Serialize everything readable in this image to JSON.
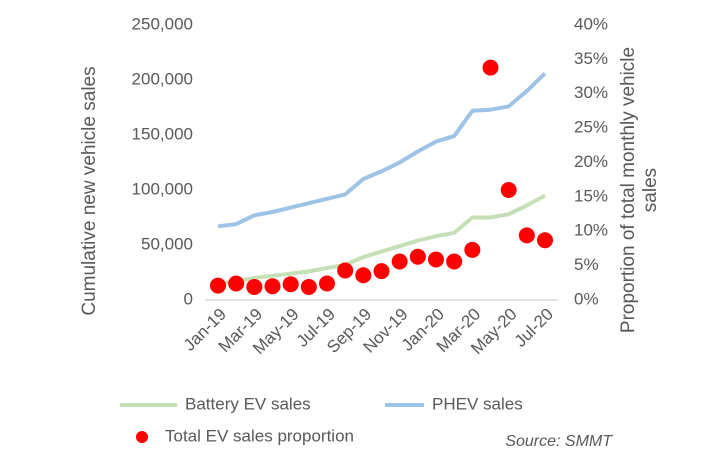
{
  "chart_data": {
    "type": "line",
    "y_label": "Cumulative new vehicle sales",
    "y2_label": "Proportion of total monthly vehicle sales",
    "source": "Source: SMMT",
    "categories": [
      "Jan-19",
      null,
      "Mar-19",
      null,
      "May-19",
      null,
      "Jul-19",
      null,
      "Sep-19",
      null,
      "Nov-19",
      null,
      "Jan-20",
      null,
      "Mar-20",
      null,
      "May-20",
      null,
      "Jul-20"
    ],
    "series": [
      {
        "name": "Battery EV sales",
        "type": "line",
        "axis": "y",
        "color": "#c5e0b4",
        "values": [
          15000,
          17000,
          20000,
          22000,
          24000,
          26000,
          29000,
          32000,
          39000,
          44000,
          49000,
          54000,
          58000,
          61000,
          75000,
          75000,
          78000,
          86000,
          95000
        ]
      },
      {
        "name": "PHEV sales",
        "type": "line",
        "axis": "y",
        "color": "#9dc3e6",
        "values": [
          67000,
          69000,
          77000,
          80000,
          84000,
          88000,
          92000,
          96000,
          110000,
          117000,
          125000,
          135000,
          144000,
          149000,
          172000,
          173000,
          176000,
          190000,
          206000
        ]
      },
      {
        "name": "Total EV sales proportion",
        "type": "scatter",
        "axis": "y2",
        "color": "#ff0000",
        "values": [
          2.1,
          2.4,
          1.9,
          2.0,
          2.3,
          1.9,
          2.4,
          4.3,
          3.6,
          4.2,
          5.6,
          6.3,
          5.9,
          5.6,
          7.3,
          33.8,
          16.0,
          9.4,
          8.7
        ]
      }
    ],
    "ylim": [
      0,
      250000
    ],
    "yticks": [
      0,
      {
        "value": 50000,
        "label": "50,000"
      },
      {
        "value": 100000,
        "label": "100,000"
      },
      {
        "value": 150000,
        "label": "150,000"
      },
      {
        "value": 200000,
        "label": "200,000"
      },
      {
        "value": 250000,
        "label": "250,000"
      }
    ],
    "y2lim": [
      0,
      40
    ],
    "y2ticks": [
      {
        "value": 0,
        "label": "0%"
      },
      {
        "value": 5,
        "label": "5%"
      },
      {
        "value": 10,
        "label": "10%"
      },
      {
        "value": 15,
        "label": "15%"
      },
      {
        "value": 20,
        "label": "20%"
      },
      {
        "value": 25,
        "label": "25%"
      },
      {
        "value": 30,
        "label": "30%"
      },
      {
        "value": 35,
        "label": "35%"
      },
      {
        "value": 40,
        "label": "40%"
      }
    ],
    "grid": false
  }
}
